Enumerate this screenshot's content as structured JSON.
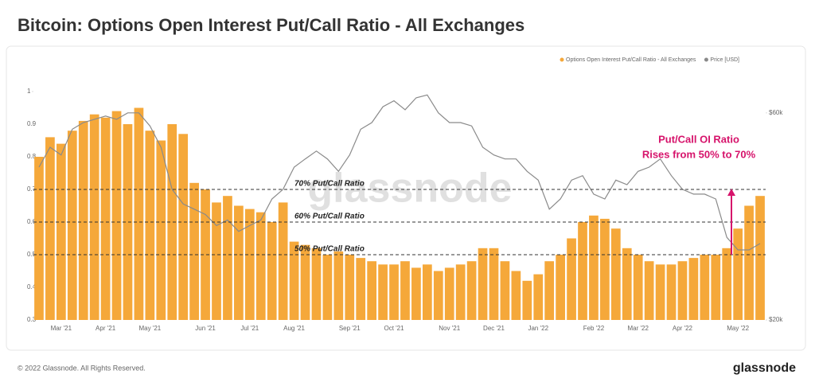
{
  "chart_data": {
    "type": "bar",
    "title": "Bitcoin: Options Open Interest Put/Call Ratio - All Exchanges",
    "watermark": "glassnode",
    "categories": [
      null,
      null,
      "Mar '21",
      null,
      null,
      null,
      "Apr '21",
      null,
      null,
      null,
      "May '21",
      null,
      null,
      null,
      null,
      "Jun '21",
      null,
      null,
      null,
      "Jul '21",
      null,
      null,
      null,
      "Aug '21",
      null,
      null,
      null,
      null,
      "Sep '21",
      null,
      null,
      null,
      "Oct '21",
      null,
      null,
      null,
      null,
      "Nov '21",
      null,
      null,
      null,
      "Dec '21",
      null,
      null,
      null,
      "Jan '22",
      null,
      null,
      null,
      null,
      "Feb '22",
      null,
      null,
      null,
      "Mar '22",
      null,
      null,
      null,
      "Apr '22",
      null,
      null,
      null,
      null,
      "May '22",
      null,
      null
    ],
    "series": [
      {
        "name": "Options Open Interest Put/Call Ratio - All Exchanges",
        "color": "#f5a83a",
        "values": [
          0.8,
          0.86,
          0.84,
          0.88,
          0.91,
          0.93,
          0.92,
          0.94,
          0.9,
          0.95,
          0.88,
          0.85,
          0.9,
          0.87,
          0.72,
          0.7,
          0.66,
          0.68,
          0.65,
          0.64,
          0.63,
          0.6,
          0.66,
          0.54,
          0.53,
          0.52,
          0.5,
          0.51,
          0.5,
          0.49,
          0.48,
          0.47,
          0.47,
          0.48,
          0.46,
          0.47,
          0.45,
          0.46,
          0.47,
          0.48,
          0.52,
          0.52,
          0.48,
          0.45,
          0.42,
          0.44,
          0.48,
          0.5,
          0.55,
          0.6,
          0.62,
          0.61,
          0.58,
          0.52,
          0.5,
          0.48,
          0.47,
          0.47,
          0.48,
          0.49,
          0.5,
          0.5,
          0.52,
          0.58,
          0.65,
          0.68
        ]
      },
      {
        "name": "Price [USD]",
        "color": "#8a8a8a",
        "axis": "y2",
        "type": "line",
        "values": [
          45000,
          50000,
          48000,
          55000,
          57000,
          58000,
          59000,
          58000,
          60000,
          60000,
          56000,
          50000,
          40000,
          37000,
          36000,
          35000,
          33000,
          34000,
          32000,
          33000,
          34000,
          38000,
          40000,
          45000,
          47000,
          49000,
          47000,
          44000,
          48000,
          55000,
          57000,
          62000,
          64000,
          61000,
          65000,
          66000,
          60000,
          57000,
          57000,
          56000,
          50000,
          48000,
          47000,
          47000,
          44000,
          42000,
          36000,
          38000,
          42000,
          43000,
          39000,
          38000,
          42000,
          41000,
          44000,
          45000,
          47000,
          43000,
          40000,
          39000,
          39000,
          38000,
          31000,
          29000,
          29000,
          30000
        ]
      }
    ],
    "ylim": [
      0.3,
      1
    ],
    "yticks": [
      0.3,
      0.4,
      0.5,
      0.6,
      0.7,
      0.8,
      0.9,
      1
    ],
    "y2lim": [
      20000,
      67200
    ],
    "y2log": true,
    "y2ticks": [
      {
        "value": 20000,
        "label": "$20k"
      },
      {
        "value": 60000,
        "label": "$60k"
      }
    ],
    "hlines": [
      {
        "value": 0.7,
        "label": "70% Put/Call Ratio"
      },
      {
        "value": 0.6,
        "label": "60% Put/Call Ratio"
      },
      {
        "value": 0.5,
        "label": "50% Put/Call Ratio"
      }
    ],
    "annotation": {
      "lines": [
        "Put/Call OI Ratio",
        "Rises from 50% to 70%"
      ],
      "arrow": [
        0.5,
        0.7
      ]
    }
  },
  "footer": {
    "copyright": "© 2022 Glassnode. All Rights Reserved.",
    "logo": "glassnode"
  }
}
